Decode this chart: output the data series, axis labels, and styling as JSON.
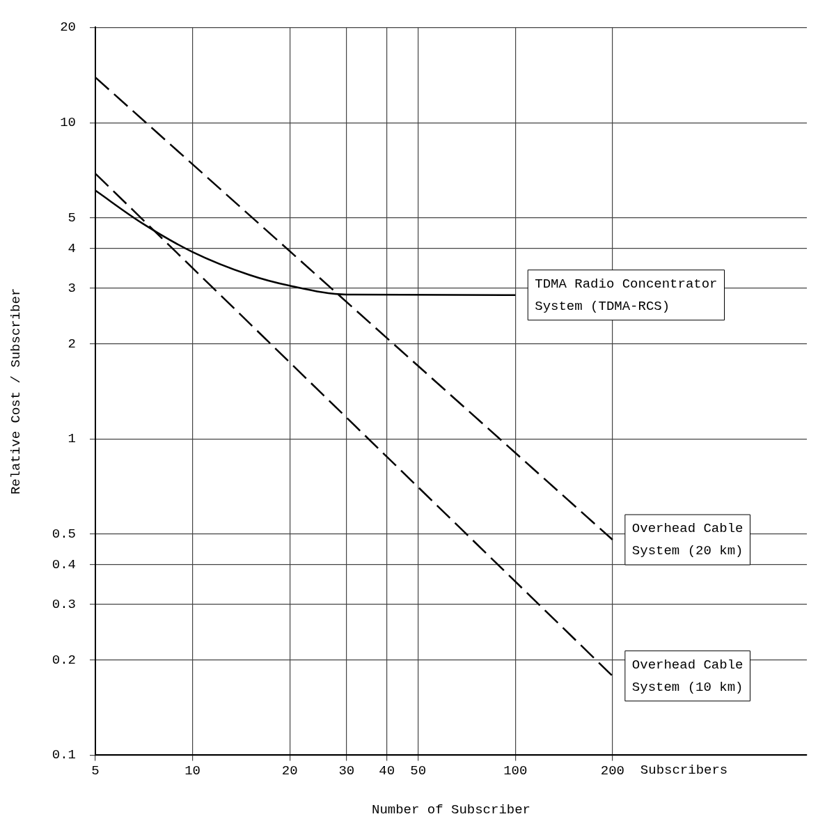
{
  "chart_data": {
    "type": "line",
    "xlabel": "Number of Subscriber",
    "ylabel": "Relative Cost / Subscriber",
    "log": "xy",
    "grid": true,
    "legend": false,
    "marker": "none",
    "xlim": [
      5,
      800
    ],
    "xticks": [
      5,
      10,
      20,
      30,
      40,
      50,
      100,
      200
    ],
    "ylim": [
      0.1,
      20
    ],
    "yticks": [
      0.1,
      0.2,
      0.3,
      0.4,
      0.5,
      1,
      2,
      3,
      4,
      5,
      10,
      20
    ],
    "annotations": [
      "Subscribers"
    ],
    "series": [
      {
        "name": "TDMA Radio Concentrator System (TDMA-RCS)",
        "color": "#000000",
        "line_style": "solid",
        "x": [
          5,
          7,
          10,
          15,
          20,
          30,
          100
        ],
        "values": [
          6.1,
          4.8,
          3.9,
          3.3,
          3.05,
          2.86,
          2.85
        ]
      },
      {
        "name": "Overhead Cable System (20 km)",
        "color": "#000000",
        "line_style": "dashed",
        "x": [
          5,
          200
        ],
        "values": [
          13.9,
          0.48
        ]
      },
      {
        "name": "Overhead Cable System (10 km)",
        "color": "#000000",
        "line_style": "dashed",
        "x": [
          5,
          200
        ],
        "values": [
          6.9,
          0.178
        ]
      }
    ]
  }
}
